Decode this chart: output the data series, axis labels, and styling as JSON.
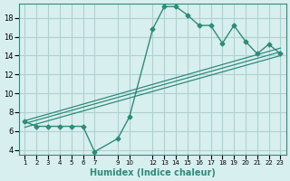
{
  "x": [
    1,
    2,
    3,
    4,
    5,
    6,
    7,
    9,
    10,
    12,
    13,
    14,
    15,
    16,
    17,
    18,
    19,
    20,
    21,
    22,
    23
  ],
  "y": [
    7,
    6.5,
    6.5,
    6.5,
    6.5,
    6.5,
    3.8,
    5.2,
    7.5,
    16.8,
    19.2,
    19.2,
    18.3,
    17.2,
    17.2,
    15.3,
    17.2,
    15.5,
    14.2,
    15.2,
    14.2
  ],
  "line_color": "#2e8b7a",
  "bg_color": "#d8efef",
  "grid_color": "#b0d0d0",
  "xlabel": "Humidex (Indice chaleur)",
  "yticks": [
    4,
    6,
    8,
    10,
    12,
    14,
    16,
    18
  ],
  "xtick_positions": [
    1,
    2,
    3,
    4,
    5,
    6,
    7,
    9,
    10,
    12,
    13,
    14,
    15,
    16,
    17,
    18,
    19,
    20,
    21,
    22,
    23
  ],
  "xtick_labels": [
    "1",
    "2",
    "3",
    "4",
    "5",
    "6",
    "7",
    "9",
    "10",
    "12",
    "13",
    "14",
    "15",
    "16",
    "17",
    "18",
    "19",
    "20",
    "21",
    "22",
    "23"
  ],
  "ylim": [
    3.5,
    19.5
  ],
  "xlim": [
    0.5,
    23.5
  ],
  "reg_line1_x": [
    1,
    23
  ],
  "reg_line1_y": [
    6.4,
    14.0
  ],
  "reg_line2_x": [
    1,
    23
  ],
  "reg_line2_y": [
    6.8,
    14.4
  ],
  "reg_line3_x": [
    1,
    23
  ],
  "reg_line3_y": [
    7.1,
    14.8
  ]
}
